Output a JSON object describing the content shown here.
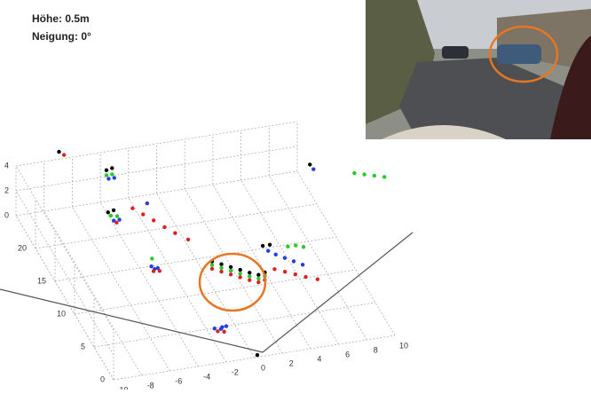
{
  "chart_data": {
    "type": "scatter3d",
    "annotations": [
      "Höhe: 0.5m",
      "Neigung: 0°"
    ],
    "xlim": [
      -10,
      10
    ],
    "xticks": [
      -10,
      -8,
      -6,
      -4,
      -2,
      0,
      2,
      4,
      6,
      8,
      10
    ],
    "ylim": [
      0,
      25
    ],
    "yticks": [
      0,
      5,
      10,
      15,
      20
    ],
    "zlim": [
      0,
      4
    ],
    "zticks": [
      0,
      2,
      4
    ],
    "grid": true,
    "series": [
      {
        "name": "black",
        "color": "#000000",
        "x": [
          0.5,
          1.0,
          1.5,
          2.0,
          2.5,
          3.0,
          3.5,
          -3.9,
          -3.5,
          -4.9,
          -4.5,
          4.3,
          4.8,
          0.3,
          -6.8,
          9.4
        ],
        "y": [
          12.6,
          12.0,
          11.4,
          10.8,
          10.2,
          9.7,
          9.9,
          23.8,
          23.8,
          19.8,
          19.8,
          13.3,
          13.3,
          0.3,
          25.5,
          19.6
        ],
        "z": [
          1.0,
          1.0,
          1.0,
          1.0,
          1.0,
          1.0,
          1.0,
          3.2,
          3.3,
          2.1,
          2.2,
          1.2,
          1.2,
          0,
          4.3,
          3.5
        ]
      },
      {
        "name": "green",
        "color": "#22cc22",
        "x": [
          0.5,
          1.0,
          1.5,
          2.0,
          2.5,
          3.0,
          3.5,
          -3.9,
          -3.5,
          -4.7,
          -4.3,
          6.0,
          6.5,
          7.0,
          12.2,
          12.8,
          13.4,
          14.0,
          -3.3
        ],
        "y": [
          12.6,
          12.0,
          11.4,
          10.8,
          10.2,
          9.7,
          9.9,
          23.8,
          23.8,
          19.8,
          19.6,
          13.0,
          12.8,
          12.6,
          18.3,
          17.9,
          17.5,
          17.1,
          14.3
        ],
        "z": [
          0.7,
          0.7,
          0.7,
          0.7,
          0.7,
          0.7,
          0.7,
          2.8,
          2.8,
          1.8,
          1.8,
          1.0,
          1.1,
          1.0,
          3.0,
          3.0,
          3.0,
          3.0,
          1.0
        ]
      },
      {
        "name": "blue",
        "color": "#1f3fe0",
        "x": [
          -3.4,
          -3.2,
          -3.0,
          -1.6,
          -1.2,
          -1.0,
          -0.8,
          5.0,
          5.5,
          6.0,
          6.5,
          4.6,
          -3.8,
          -3.4,
          -4.6,
          -4.2,
          9.6,
          -2.2
        ],
        "y": [
          14.1,
          14.0,
          13.9,
          4.4,
          4.2,
          4.6,
          4.3,
          12.5,
          12.0,
          11.5,
          11.0,
          13.0,
          23.6,
          23.6,
          19.4,
          19.4,
          19.4,
          19.5
        ],
        "z": [
          0.5,
          0.3,
          0.4,
          0.3,
          0.3,
          0.2,
          0.4,
          0.8,
          0.7,
          0.6,
          0.5,
          0.9,
          2.6,
          2.6,
          1.6,
          1.6,
          3.2,
          2.5
        ]
      },
      {
        "name": "red",
        "color": "#e02020",
        "x": [
          0.5,
          1.0,
          1.5,
          2.0,
          2.5,
          3.0,
          3.5,
          -3.1,
          -2.6,
          -2.1,
          -1.6,
          -1.1,
          -0.45,
          4.5,
          5.1,
          5.7,
          6.3,
          7.0,
          -1.4,
          -1.0,
          -3.3,
          -2.9,
          -4.4,
          -6.5
        ],
        "y": [
          12.6,
          12.0,
          11.4,
          10.8,
          10.2,
          9.7,
          9.9,
          20.0,
          19.1,
          18.2,
          17.2,
          16.3,
          15.3,
          11.0,
          10.5,
          10.0,
          9.5,
          9.0,
          4.3,
          4.1,
          13.9,
          13.8,
          19.4,
          25.3
        ],
        "z": [
          0.4,
          0.4,
          0.4,
          0.4,
          0.4,
          0.4,
          0.4,
          2.0,
          1.9,
          1.8,
          1.7,
          1.6,
          1.5,
          0.5,
          0.45,
          0.4,
          0.35,
          0.3,
          0.1,
          0.1,
          0.2,
          0.2,
          1.4,
          4.1
        ]
      }
    ]
  }
}
